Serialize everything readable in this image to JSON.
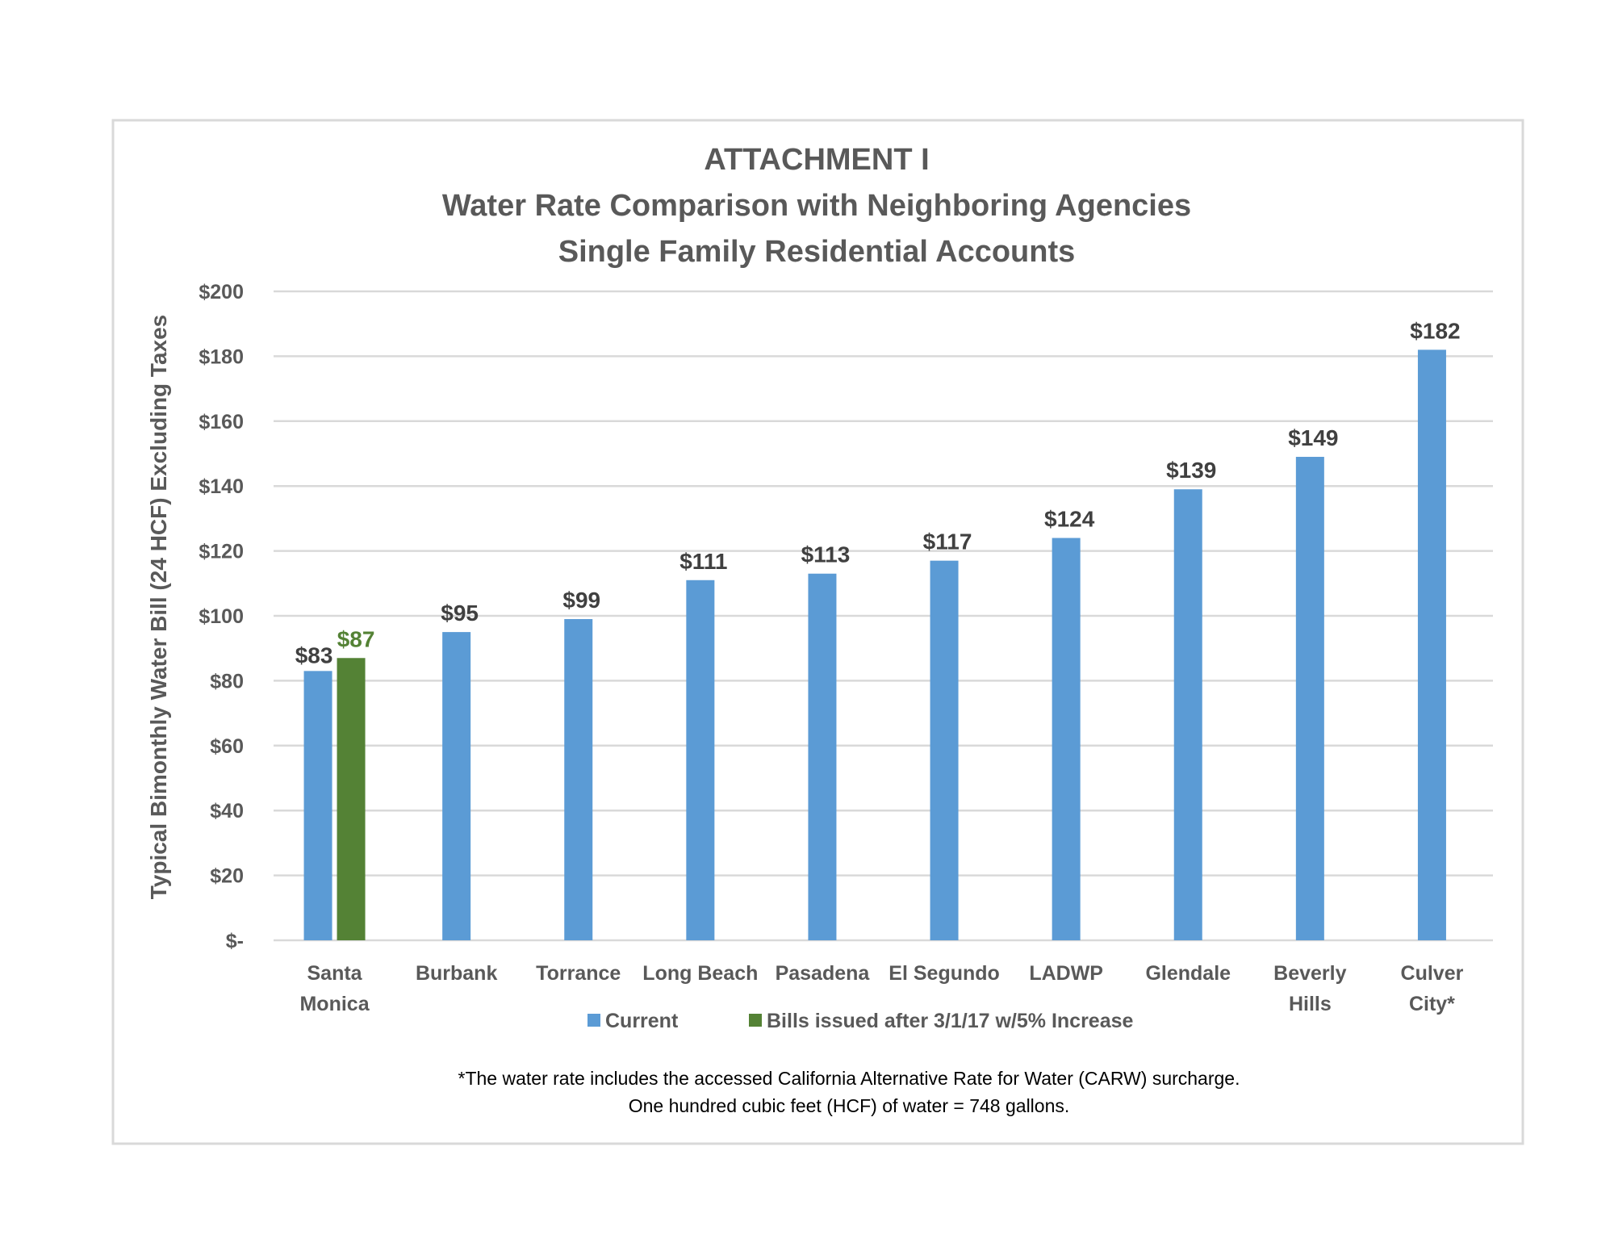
{
  "chart_data": {
    "type": "bar",
    "title": [
      "ATTACHMENT I",
      "Water Rate Comparison with Neighboring Agencies",
      "Single Family Residential Accounts"
    ],
    "ylabel": "Typical Bimonthly Water Bill (24 HCF) Excluding Taxes",
    "xlabel": "",
    "ylim": [
      0,
      200
    ],
    "yticks": [
      0,
      20,
      40,
      60,
      80,
      100,
      120,
      140,
      160,
      180,
      200
    ],
    "ytick_labels": [
      "$-",
      "$20",
      "$40",
      "$60",
      "$80",
      "$100",
      "$120",
      "$140",
      "$160",
      "$180",
      "$200"
    ],
    "grid": true,
    "legend_position": "bottom",
    "categories": [
      [
        "Santa",
        "Monica"
      ],
      [
        "Burbank"
      ],
      [
        "Torrance"
      ],
      [
        "Long Beach"
      ],
      [
        "Pasadena"
      ],
      [
        "El Segundo"
      ],
      [
        "LADWP"
      ],
      [
        "Glendale"
      ],
      [
        "Beverly",
        "Hills"
      ],
      [
        "Culver",
        "City*"
      ]
    ],
    "series": [
      {
        "name": "Current",
        "color": "#5B9BD5",
        "values": [
          83,
          95,
          99,
          111,
          113,
          117,
          124,
          139,
          149,
          182
        ],
        "labels": [
          "$83",
          "$95",
          "$99",
          "$111",
          "$113",
          "$117",
          "$124",
          "$139",
          "$149",
          "$182"
        ]
      },
      {
        "name": "Bills issued after 3/1/17 w/5% Increase",
        "color": "#548235",
        "values": [
          87,
          null,
          null,
          null,
          null,
          null,
          null,
          null,
          null,
          null
        ],
        "labels": [
          "$87",
          null,
          null,
          null,
          null,
          null,
          null,
          null,
          null,
          null
        ]
      }
    ],
    "footnotes": [
      "*The water rate includes the accessed California Alternative Rate for Water (CARW) surcharge.",
      "One hundred cubic feet (HCF) of water = 748 gallons."
    ]
  }
}
